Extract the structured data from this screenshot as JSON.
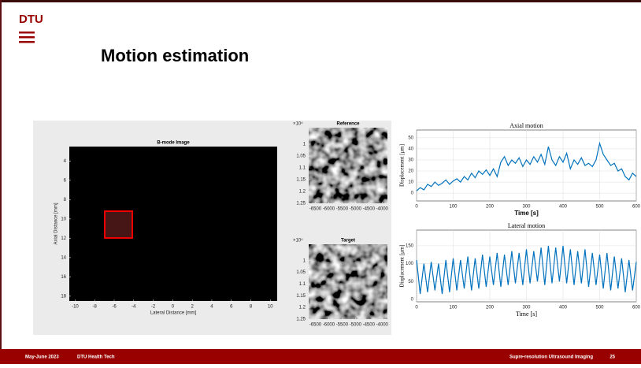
{
  "header": {
    "logo": "DTU",
    "title": "Motion estimation"
  },
  "figures": [
    {
      "title": "B-mode Image",
      "xlabel": "Lateral Distance [mm]",
      "ylabel": "Axial Distance [mm]",
      "xlim": [
        -10.6,
        10.7
      ],
      "ylim": [
        2.5,
        18.5
      ],
      "xticks": [
        -10,
        -8,
        -6,
        -4,
        -2,
        0,
        2,
        4,
        6,
        8,
        10
      ],
      "yticks": [
        4,
        6,
        8,
        10,
        12,
        14,
        16,
        18
      ]
    },
    {
      "title": "Reference",
      "exponent": "×10⁴",
      "xlim": [
        -6750,
        -3800
      ],
      "ylim": [
        0.93,
        1.25
      ],
      "xticks": [
        -6500,
        -6000,
        -5500,
        -5000,
        -4500,
        -4000
      ],
      "yticks": [
        1,
        1.05,
        1.1,
        1.15,
        1.2,
        1.25
      ]
    },
    {
      "title": "Target",
      "exponent": "×10⁴",
      "xlim": [
        -6750,
        -3800
      ],
      "ylim": [
        0.93,
        1.25
      ],
      "xticks": [
        -6500,
        -6000,
        -5500,
        -5000,
        -4500,
        -4000
      ],
      "yticks": [
        1,
        1.05,
        1.1,
        1.15,
        1.2,
        1.25
      ]
    }
  ],
  "chart_data": [
    {
      "type": "line",
      "title": "Axial motion",
      "xlabel": "Time [s]",
      "ylabel": "Displacement [μm]",
      "xlim": [
        0,
        600
      ],
      "ylim": [
        -7,
        57
      ],
      "xticks": [
        0,
        100,
        200,
        300,
        400,
        500,
        600
      ],
      "yticks": [
        0,
        10,
        20,
        30,
        40,
        50
      ],
      "grid": true,
      "x": [
        0,
        10,
        20,
        30,
        40,
        50,
        60,
        70,
        80,
        90,
        100,
        110,
        120,
        130,
        140,
        150,
        160,
        170,
        180,
        190,
        200,
        210,
        220,
        230,
        240,
        250,
        260,
        270,
        280,
        290,
        300,
        310,
        320,
        330,
        340,
        350,
        360,
        370,
        380,
        390,
        400,
        410,
        420,
        430,
        440,
        450,
        460,
        470,
        480,
        490,
        500,
        510,
        520,
        530,
        540,
        550,
        560,
        570,
        580,
        590,
        600
      ],
      "series": [
        {
          "color": "#0072bd",
          "values": [
            2,
            5,
            3,
            8,
            6,
            10,
            7,
            9,
            12,
            8,
            11,
            13,
            10,
            15,
            12,
            18,
            14,
            20,
            17,
            21,
            16,
            22,
            15,
            28,
            33,
            25,
            30,
            27,
            32,
            24,
            30,
            26,
            33,
            28,
            35,
            26,
            42,
            30,
            25,
            33,
            28,
            36,
            22,
            30,
            26,
            32,
            25,
            27,
            24,
            30,
            45,
            35,
            30,
            25,
            27,
            20,
            22,
            15,
            12,
            18,
            15
          ]
        }
      ]
    },
    {
      "type": "line",
      "title": "Lateral motion",
      "xlabel": "Time [s]",
      "ylabel": "Displacement [μm]",
      "xlim": [
        0,
        600
      ],
      "ylim": [
        -7,
        194
      ],
      "xticks": [
        0,
        100,
        200,
        300,
        400,
        500,
        600
      ],
      "yticks": [
        0,
        50,
        100,
        150
      ],
      "grid": true,
      "x": [
        0,
        10,
        20,
        30,
        40,
        50,
        60,
        70,
        80,
        90,
        100,
        110,
        120,
        130,
        140,
        150,
        160,
        170,
        180,
        190,
        200,
        210,
        220,
        230,
        240,
        250,
        260,
        270,
        280,
        290,
        300,
        310,
        320,
        330,
        340,
        350,
        360,
        370,
        380,
        390,
        400,
        410,
        420,
        430,
        440,
        450,
        460,
        470,
        480,
        490,
        500,
        510,
        520,
        530,
        540,
        550,
        560,
        570,
        580,
        590,
        600
      ],
      "series": [
        {
          "color": "#0072bd",
          "values": [
            110,
            15,
            100,
            20,
            105,
            25,
            100,
            15,
            110,
            20,
            115,
            25,
            110,
            30,
            120,
            25,
            115,
            30,
            125,
            35,
            120,
            40,
            130,
            35,
            125,
            40,
            135,
            45,
            130,
            40,
            140,
            45,
            135,
            50,
            145,
            40,
            150,
            45,
            145,
            50,
            150,
            45,
            140,
            40,
            135,
            45,
            140,
            35,
            130,
            40,
            125,
            30,
            130,
            25,
            120,
            30,
            115,
            20,
            110,
            25,
            105
          ]
        }
      ]
    }
  ],
  "footer": {
    "date": "May-June 2023",
    "dept": "DTU Health Tech",
    "course": "Supre-resolution Ultrasound Imaging",
    "page": "25"
  }
}
